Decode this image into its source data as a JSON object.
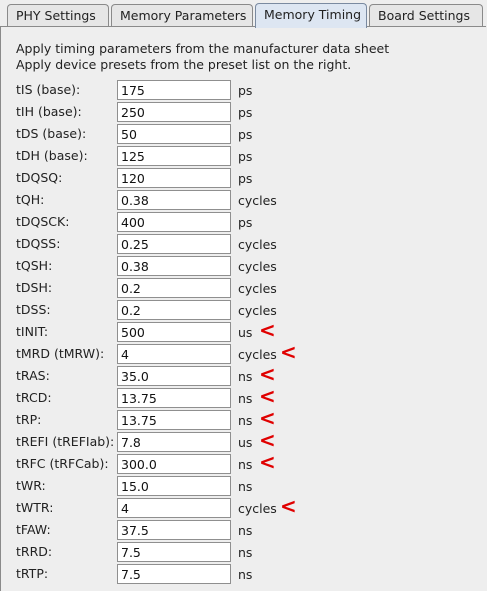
{
  "tabs": [
    {
      "label": "PHY Settings"
    },
    {
      "label": "Memory Parameters"
    },
    {
      "label": "Memory Timing"
    },
    {
      "label": "Board Settings"
    }
  ],
  "active_tab": "Memory Timing",
  "description": {
    "line1": "Apply timing parameters from the manufacturer data sheet",
    "line2": "Apply device presets from the preset list on the right."
  },
  "marker_color": "#e00000",
  "marker_glyph": "<",
  "params": [
    {
      "label": "tIS (base):",
      "value": "175",
      "unit": "ps",
      "marked": false
    },
    {
      "label": "tIH (base):",
      "value": "250",
      "unit": "ps",
      "marked": false
    },
    {
      "label": "tDS (base):",
      "value": "50",
      "unit": "ps",
      "marked": false
    },
    {
      "label": "tDH (base):",
      "value": "125",
      "unit": "ps",
      "marked": false
    },
    {
      "label": "tDQSQ:",
      "value": "120",
      "unit": "ps",
      "marked": false
    },
    {
      "label": "tQH:",
      "value": "0.38",
      "unit": "cycles",
      "marked": false
    },
    {
      "label": "tDQSCK:",
      "value": "400",
      "unit": "ps",
      "marked": false
    },
    {
      "label": "tDQSS:",
      "value": "0.25",
      "unit": "cycles",
      "marked": false
    },
    {
      "label": "tQSH:",
      "value": "0.38",
      "unit": "cycles",
      "marked": false
    },
    {
      "label": "tDSH:",
      "value": "0.2",
      "unit": "cycles",
      "marked": false
    },
    {
      "label": "tDSS:",
      "value": "0.2",
      "unit": "cycles",
      "marked": false
    },
    {
      "label": "tINIT:",
      "value": "500",
      "unit": "us",
      "marked": true
    },
    {
      "label": "tMRD (tMRW):",
      "value": "4",
      "unit": "cycles",
      "marked": true
    },
    {
      "label": "tRAS:",
      "value": "35.0",
      "unit": "ns",
      "marked": true
    },
    {
      "label": "tRCD:",
      "value": "13.75",
      "unit": "ns",
      "marked": true
    },
    {
      "label": "tRP:",
      "value": "13.75",
      "unit": "ns",
      "marked": true
    },
    {
      "label": "tREFI (tREFIab):",
      "value": "7.8",
      "unit": "us",
      "marked": true
    },
    {
      "label": "tRFC (tRFCab):",
      "value": "300.0",
      "unit": "ns",
      "marked": true
    },
    {
      "label": "tWR:",
      "value": "15.0",
      "unit": "ns",
      "marked": false
    },
    {
      "label": "tWTR:",
      "value": "4",
      "unit": "cycles",
      "marked": true
    },
    {
      "label": "tFAW:",
      "value": "37.5",
      "unit": "ns",
      "marked": false
    },
    {
      "label": "tRRD:",
      "value": "7.5",
      "unit": "ns",
      "marked": false
    },
    {
      "label": "tRTP:",
      "value": "7.5",
      "unit": "ns",
      "marked": false
    }
  ]
}
